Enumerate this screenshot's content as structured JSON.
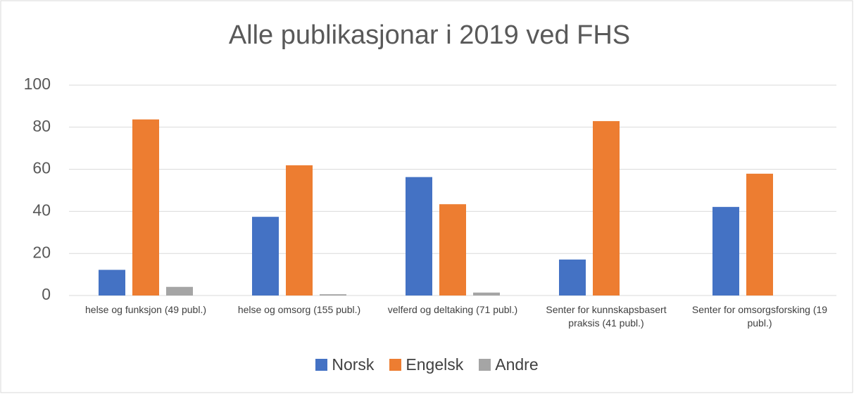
{
  "chart_data": {
    "type": "bar",
    "title": "Alle publikasjonar i 2019 ved FHS",
    "categories": [
      "helse og funksjon (49 publ.)",
      "helse og omsorg (155 publ.)",
      "velferd og deltaking (71 publ.)",
      "Senter for kunnskapsbasert praksis (41 publ.)",
      "Senter for omsorgsforsking (19 publ.)"
    ],
    "series": [
      {
        "name": "Norsk",
        "color": "#4472c4",
        "values": [
          12.2,
          37.4,
          56.3,
          17.1,
          42.1
        ]
      },
      {
        "name": "Engelsk",
        "color": "#ed7d31",
        "values": [
          83.7,
          61.9,
          43.4,
          82.9,
          57.9
        ]
      },
      {
        "name": "Andre",
        "color": "#a5a5a5",
        "values": [
          4.1,
          0.6,
          1.4,
          0,
          0
        ]
      }
    ],
    "ylim": [
      0,
      100
    ],
    "yticks": [
      0,
      20,
      40,
      60,
      80,
      100
    ],
    "grid": true,
    "legend": "bottom"
  }
}
